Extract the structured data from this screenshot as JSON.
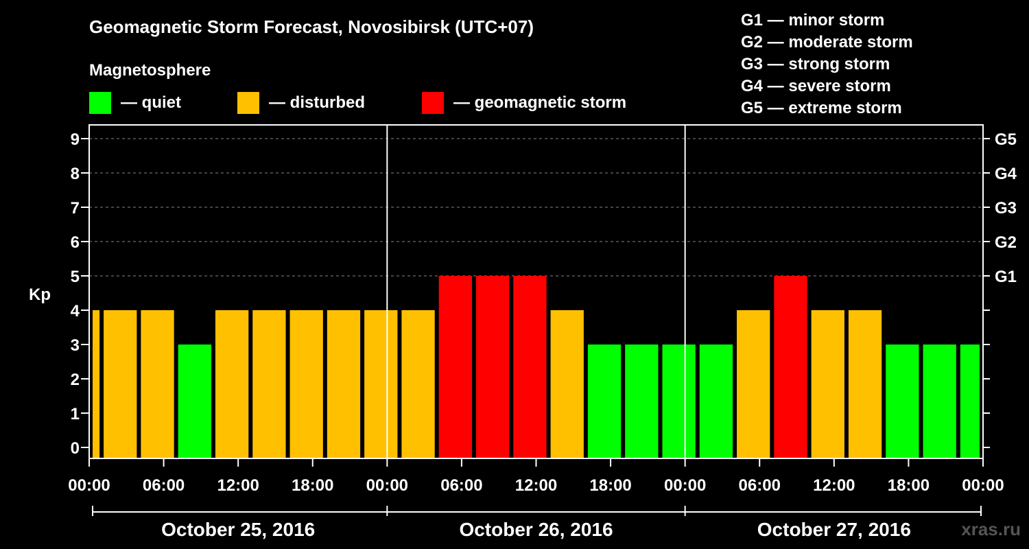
{
  "chart_data": {
    "type": "bar",
    "title": "Geomagnetic Storm Forecast, Novosibirsk (UTC+07)",
    "ylabel": "Kp",
    "ylim": [
      0,
      9
    ],
    "yticks": [
      "0",
      "1",
      "2",
      "3",
      "4",
      "5",
      "6",
      "7",
      "8",
      "9"
    ],
    "xticks": [
      "00:00",
      "06:00",
      "12:00",
      "18:00",
      "00:00",
      "06:00",
      "12:00",
      "18:00",
      "00:00",
      "06:00",
      "12:00",
      "18:00",
      "00:00"
    ],
    "days": [
      "October 25, 2016",
      "October 26, 2016",
      "October 27, 2016"
    ],
    "legend_title": "Magnetosphere",
    "legend": [
      {
        "label": "— quiet",
        "color": "#00ff00"
      },
      {
        "label": "— disturbed",
        "color": "#ffc000"
      },
      {
        "label": "— geomagnetic storm",
        "color": "#ff0000"
      }
    ],
    "g_scale_legend": [
      "G1 — minor storm",
      "G2 — moderate storm",
      "G3 — strong storm",
      "G4 — severe storm",
      "G5 — extreme storm"
    ],
    "g_levels": [
      {
        "label": "G1",
        "kp": 5
      },
      {
        "label": "G2",
        "kp": 6
      },
      {
        "label": "G3",
        "kp": 7
      },
      {
        "label": "G4",
        "kp": 8
      },
      {
        "label": "G5",
        "kp": 9
      }
    ],
    "bars": [
      {
        "start_hour": 0,
        "end_hour": 1,
        "kp": 4,
        "status": "disturbed"
      },
      {
        "start_hour": 1,
        "end_hour": 4,
        "kp": 4,
        "status": "disturbed"
      },
      {
        "start_hour": 4,
        "end_hour": 7,
        "kp": 4,
        "status": "disturbed"
      },
      {
        "start_hour": 7,
        "end_hour": 10,
        "kp": 3,
        "status": "quiet"
      },
      {
        "start_hour": 10,
        "end_hour": 13,
        "kp": 4,
        "status": "disturbed"
      },
      {
        "start_hour": 13,
        "end_hour": 16,
        "kp": 4,
        "status": "disturbed"
      },
      {
        "start_hour": 16,
        "end_hour": 19,
        "kp": 4,
        "status": "disturbed"
      },
      {
        "start_hour": 19,
        "end_hour": 22,
        "kp": 4,
        "status": "disturbed"
      },
      {
        "start_hour": 22,
        "end_hour": 25,
        "kp": 4,
        "status": "disturbed"
      },
      {
        "start_hour": 25,
        "end_hour": 28,
        "kp": 4,
        "status": "disturbed"
      },
      {
        "start_hour": 28,
        "end_hour": 31,
        "kp": 5,
        "status": "storm"
      },
      {
        "start_hour": 31,
        "end_hour": 34,
        "kp": 5,
        "status": "storm"
      },
      {
        "start_hour": 34,
        "end_hour": 37,
        "kp": 5,
        "status": "storm"
      },
      {
        "start_hour": 37,
        "end_hour": 40,
        "kp": 4,
        "status": "disturbed"
      },
      {
        "start_hour": 40,
        "end_hour": 43,
        "kp": 3,
        "status": "quiet"
      },
      {
        "start_hour": 43,
        "end_hour": 46,
        "kp": 3,
        "status": "quiet"
      },
      {
        "start_hour": 46,
        "end_hour": 49,
        "kp": 3,
        "status": "quiet"
      },
      {
        "start_hour": 49,
        "end_hour": 52,
        "kp": 3,
        "status": "quiet"
      },
      {
        "start_hour": 52,
        "end_hour": 55,
        "kp": 4,
        "status": "disturbed"
      },
      {
        "start_hour": 55,
        "end_hour": 58,
        "kp": 5,
        "status": "storm"
      },
      {
        "start_hour": 58,
        "end_hour": 61,
        "kp": 4,
        "status": "disturbed"
      },
      {
        "start_hour": 61,
        "end_hour": 64,
        "kp": 4,
        "status": "disturbed"
      },
      {
        "start_hour": 64,
        "end_hour": 67,
        "kp": 3,
        "status": "quiet"
      },
      {
        "start_hour": 67,
        "end_hour": 70,
        "kp": 3,
        "status": "quiet"
      },
      {
        "start_hour": 70,
        "end_hour": 72,
        "kp": 3,
        "status": "quiet"
      }
    ],
    "status_colors": {
      "quiet": "#00ff00",
      "disturbed": "#ffc000",
      "storm": "#ff0000"
    },
    "grid": true
  },
  "watermark": "xras.ru"
}
